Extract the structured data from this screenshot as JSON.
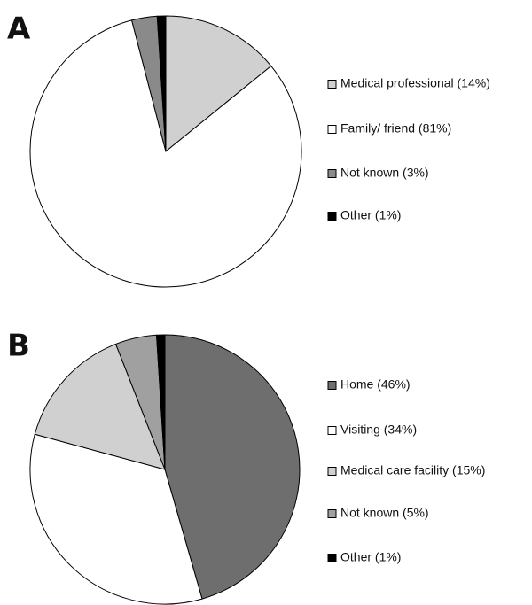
{
  "chart_data": [
    {
      "type": "pie",
      "title": "A",
      "categories": [
        "Medical professional (14%)",
        "Family/ friend (81%)",
        "Not known (3%)",
        "Other (1%)"
      ],
      "values": [
        14,
        81,
        3,
        1
      ],
      "colors": [
        "#d0d0d0",
        "#ffffff",
        "#8a8a8a",
        "#000000"
      ]
    },
    {
      "type": "pie",
      "title": "B",
      "categories": [
        "Home (46%)",
        "Visiting (34%)",
        "Medical care facility (15%)",
        "Not known (5%)",
        "Other (1%)"
      ],
      "values": [
        46,
        34,
        15,
        5,
        1
      ],
      "colors": [
        "#6e6e6e",
        "#ffffff",
        "#d0d0d0",
        "#a0a0a0",
        "#000000"
      ]
    }
  ]
}
